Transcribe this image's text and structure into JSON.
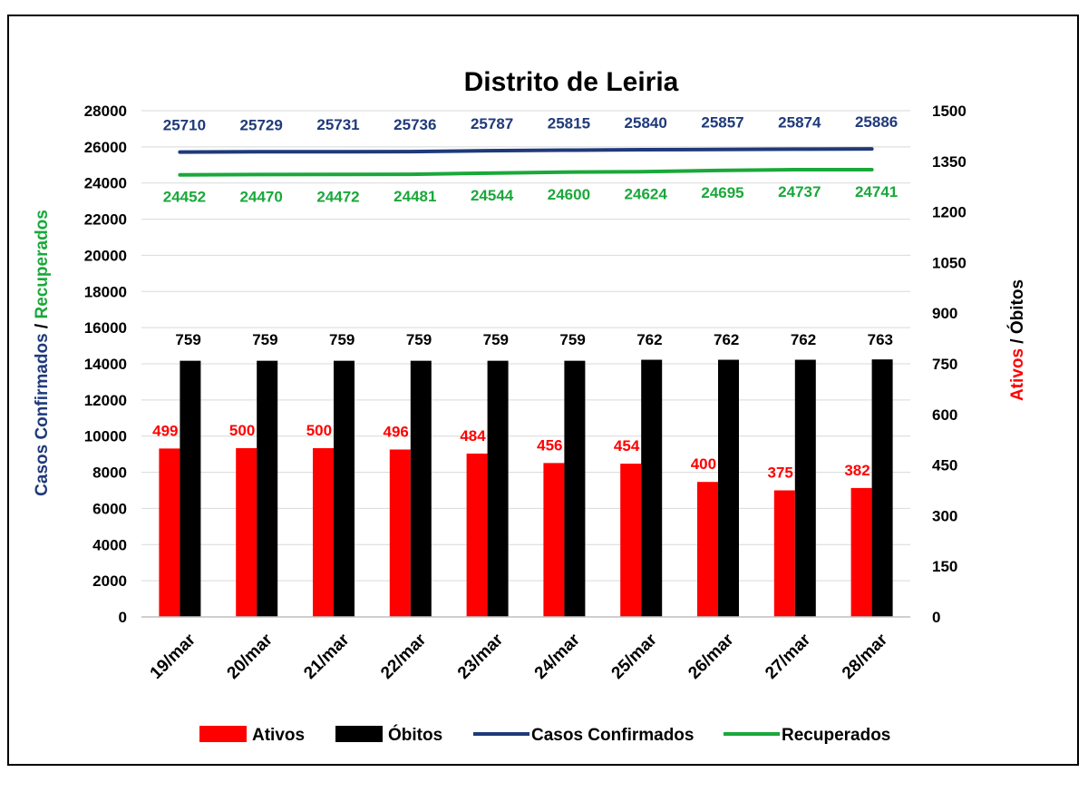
{
  "chart_data": {
    "type": "bar",
    "title": "Distrito de Leiria",
    "categories": [
      "19/mar",
      "20/mar",
      "21/mar",
      "22/mar",
      "23/mar",
      "24/mar",
      "25/mar",
      "26/mar",
      "27/mar",
      "28/mar"
    ],
    "series": [
      {
        "name": "Ativos",
        "kind": "bar",
        "axis": "right",
        "color": "#ff0000",
        "label_color": "#ff0000",
        "values": [
          499,
          500,
          500,
          496,
          484,
          456,
          454,
          400,
          375,
          382
        ]
      },
      {
        "name": "Óbitos",
        "kind": "bar",
        "axis": "right",
        "color": "#000000",
        "label_color": "#000000",
        "values": [
          759,
          759,
          759,
          759,
          759,
          759,
          762,
          762,
          762,
          763
        ]
      },
      {
        "name": "Casos Confirmados",
        "kind": "line",
        "axis": "left",
        "color": "#1f3a7a",
        "label_color": "#1f3a7a",
        "values": [
          25710,
          25729,
          25731,
          25736,
          25787,
          25815,
          25840,
          25857,
          25874,
          25886
        ]
      },
      {
        "name": "Recuperados",
        "kind": "line",
        "axis": "left",
        "color": "#1aa83a",
        "label_color": "#1aa83a",
        "values": [
          24452,
          24470,
          24472,
          24481,
          24544,
          24600,
          24624,
          24695,
          24737,
          24741
        ]
      }
    ],
    "left_axis": {
      "label_part1": "Casos Confirmados",
      "separator": " / ",
      "label_part2": "Recuperados",
      "label_part1_color": "#1f3a7a",
      "label_part2_color": "#1aa83a",
      "ylim": [
        0,
        28000
      ],
      "ticks": [
        0,
        2000,
        4000,
        6000,
        8000,
        10000,
        12000,
        14000,
        16000,
        18000,
        20000,
        22000,
        24000,
        26000,
        28000
      ]
    },
    "right_axis": {
      "label_part1": "Ativos",
      "separator": " / ",
      "label_part2": "Óbitos",
      "label_part1_color": "#ff0000",
      "label_part2_color": "#000000",
      "ylim": [
        0,
        1500
      ],
      "ticks": [
        0,
        150,
        300,
        450,
        600,
        750,
        900,
        1050,
        1200,
        1350,
        1500
      ]
    },
    "grid": "horizontal-major-1000s",
    "legend_position": "bottom"
  }
}
